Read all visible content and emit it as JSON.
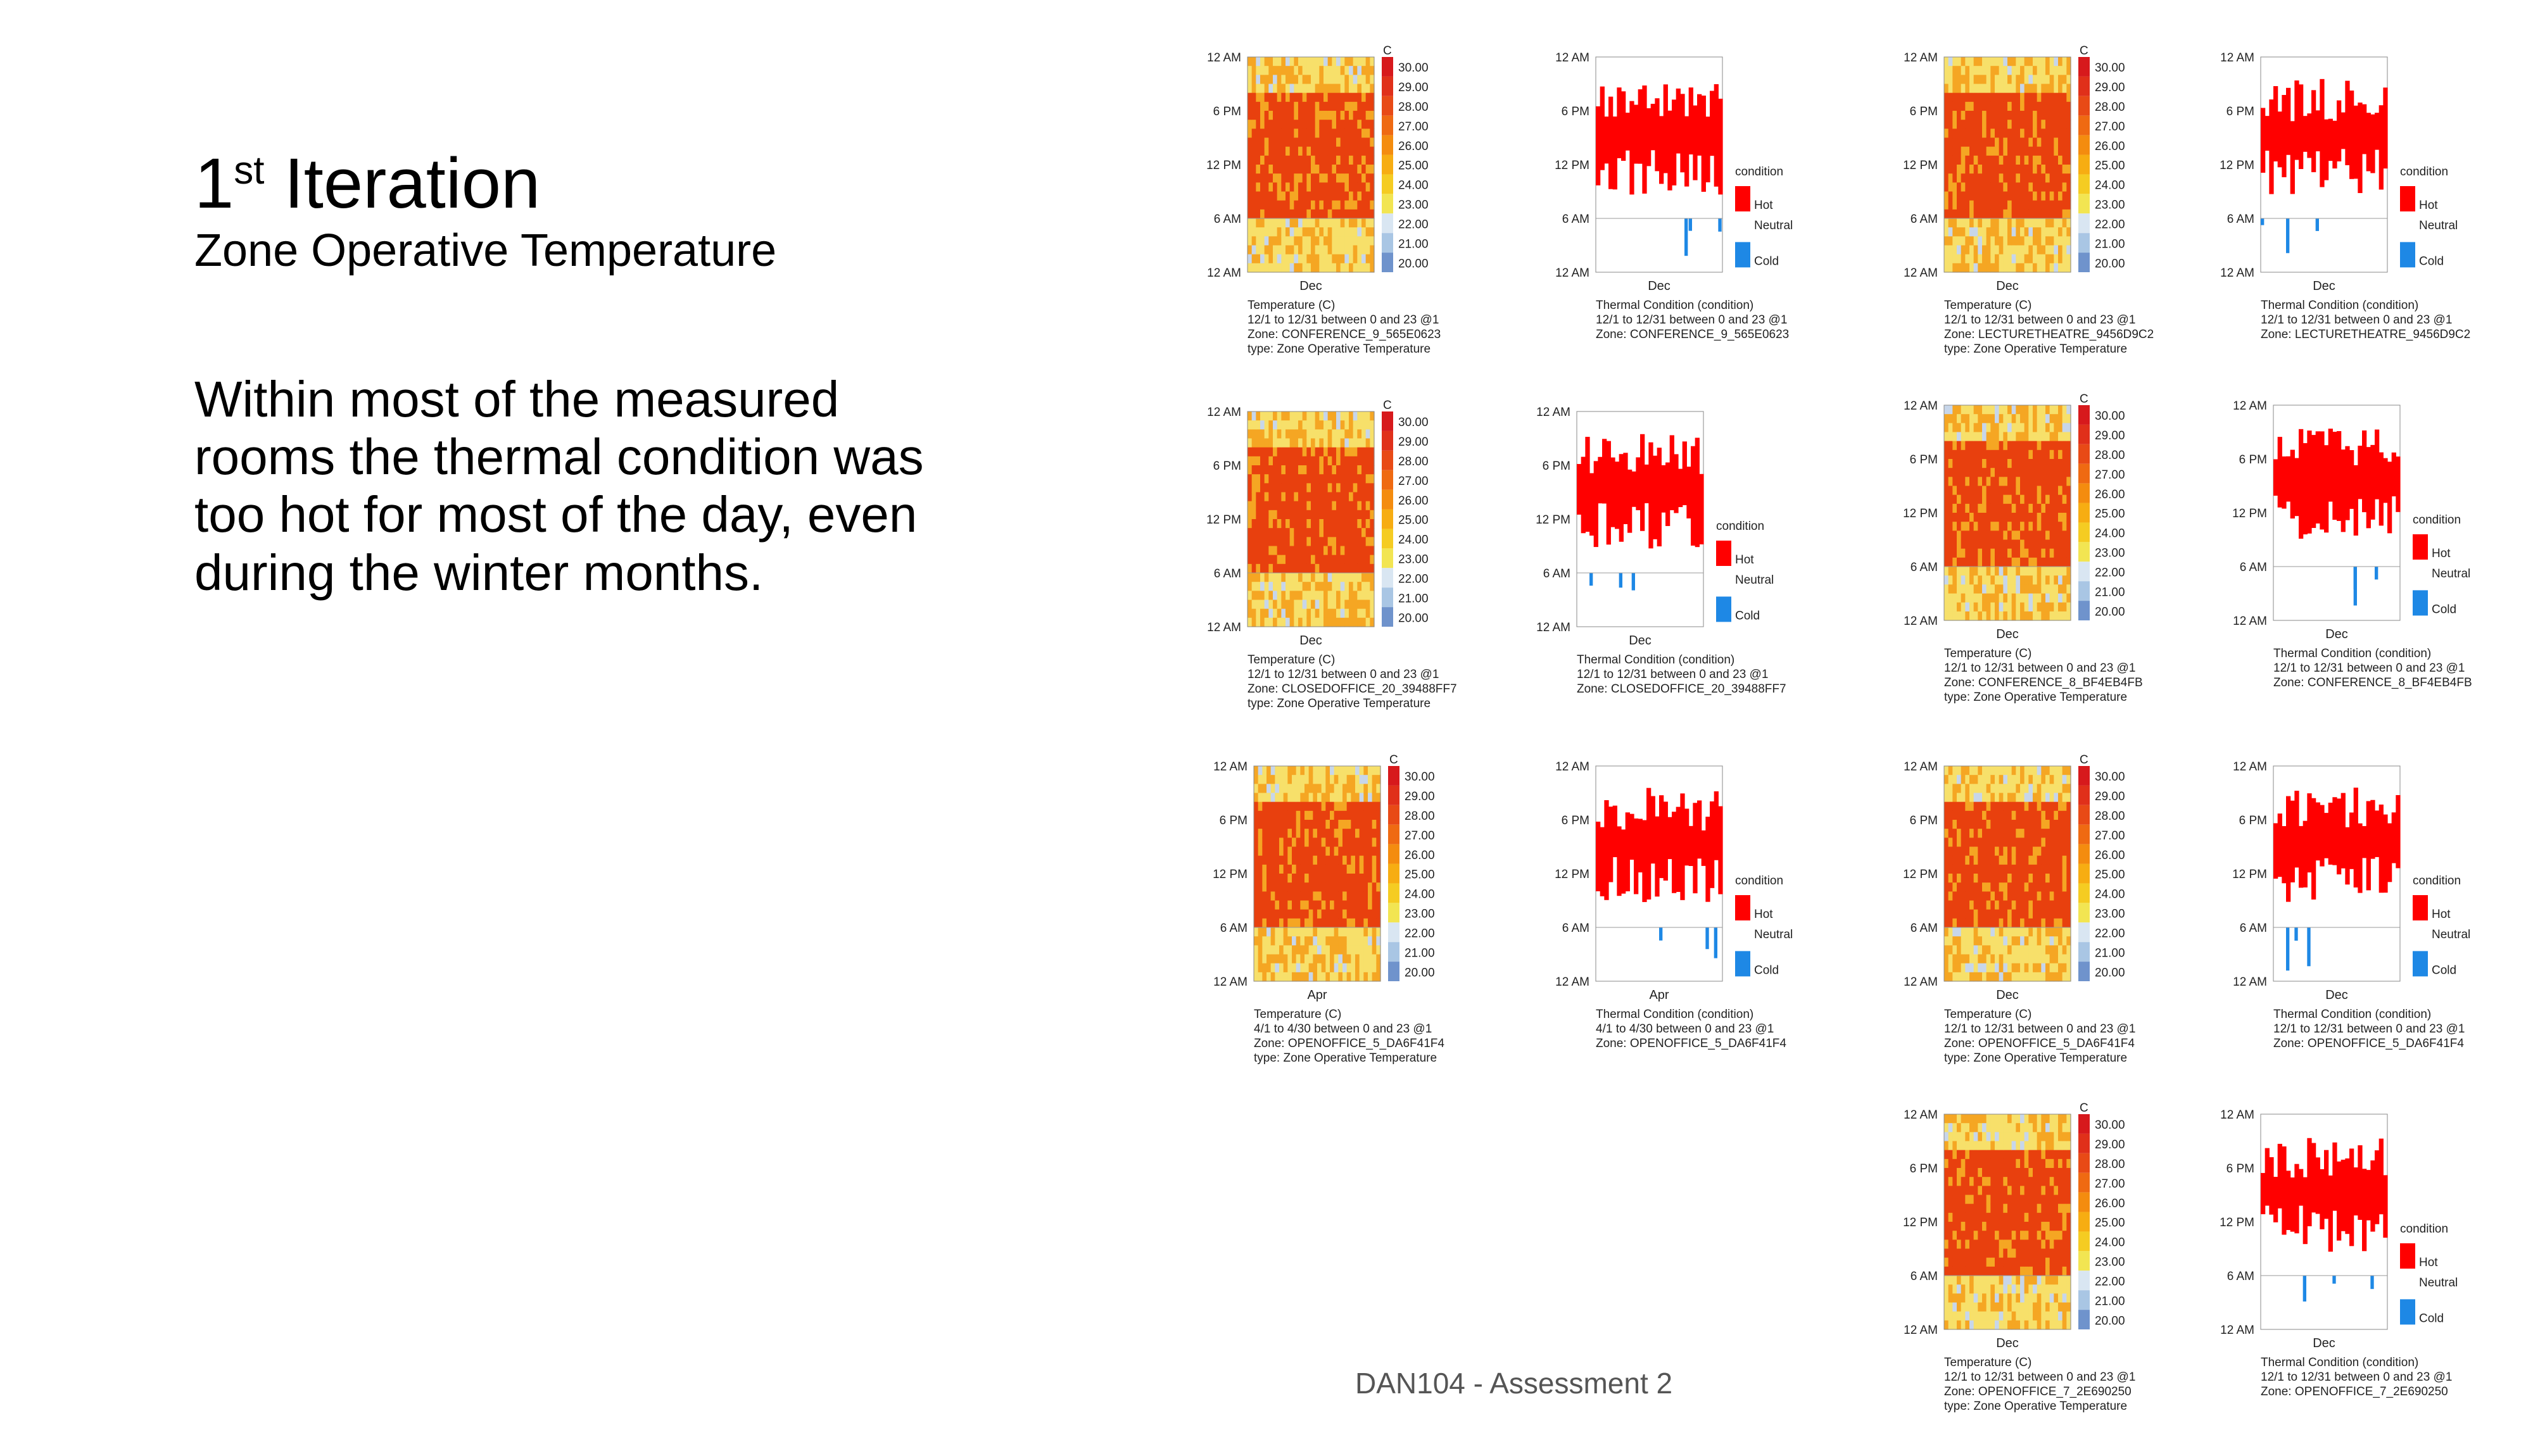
{
  "title": {
    "main": "1",
    "superscript": "st",
    "rest": " Iteration"
  },
  "subtitle": "Zone Operative Temperature",
  "body_text": "Within most of the measured rooms the thermal condition was too hot for most of the day, even during the winter months.",
  "footer": "DAN104 - Assessment 2",
  "common": {
    "hour_ticks": [
      "12 AM",
      "6 PM",
      "12 PM",
      "6 AM",
      "12 AM"
    ],
    "legend_unit": "C",
    "legend_values": [
      "30.00",
      "29.00",
      "28.00",
      "27.00",
      "26.00",
      "25.00",
      "24.00",
      "23.00",
      "22.00",
      "21.00",
      "20.00"
    ],
    "legend_colors": [
      "#d7191c",
      "#e0301a",
      "#e84a16",
      "#ef6a12",
      "#f48c0f",
      "#f7ad12",
      "#f5cc22",
      "#f2e552",
      "#d9e6f2",
      "#a9c6e4",
      "#6f93cc"
    ],
    "condition_legend": {
      "title": "condition",
      "hot": "Hot",
      "neutral": "Neutral",
      "cold": "Cold"
    },
    "colors": {
      "hot": "#ff0000",
      "cold": "#1e88e5",
      "heat_high": "#e8400e",
      "heat_mid": "#f5a623",
      "heat_low": "#f7e06a"
    }
  },
  "chart_data": [
    {
      "type": "heatmap",
      "xlabel": "Dec",
      "caption": [
        "Temperature (C)",
        "12/1 to 12/31 between 0 and 23 @1",
        "Zone: CONFERENCE_9_565E0623",
        "type: Zone Operative Temperature"
      ],
      "value_range": [
        20,
        30
      ]
    },
    {
      "type": "bar",
      "xlabel": "Dec",
      "caption": [
        "Thermal Condition (condition)",
        "12/1 to 12/31 between 0 and 23 @1",
        "Zone: CONFERENCE_9_565E0623"
      ],
      "categories": [
        "Hot",
        "Neutral",
        "Cold"
      ]
    },
    {
      "type": "heatmap",
      "xlabel": "Dec",
      "caption": [
        "Temperature (C)",
        "12/1 to 12/31 between 0 and 23 @1",
        "Zone: LECTURETHEATRE_9456D9C2",
        "type: Zone Operative Temperature"
      ],
      "value_range": [
        20,
        30
      ]
    },
    {
      "type": "bar",
      "xlabel": "Dec",
      "caption": [
        "Thermal Condition (condition)",
        "12/1 to 12/31 between 0 and 23 @1",
        "Zone: LECTURETHEATRE_9456D9C2"
      ],
      "categories": [
        "Hot",
        "Neutral",
        "Cold"
      ]
    },
    {
      "type": "heatmap",
      "xlabel": "Dec",
      "caption": [
        "Temperature (C)",
        "12/1 to 12/31 between 0 and 23 @1",
        "Zone: CLOSEDOFFICE_20_39488FF7",
        "type: Zone Operative Temperature"
      ],
      "value_range": [
        20,
        30
      ]
    },
    {
      "type": "bar",
      "xlabel": "Dec",
      "caption": [
        "Thermal Condition (condition)",
        "12/1 to 12/31 between 0 and 23 @1",
        "Zone: CLOSEDOFFICE_20_39488FF7"
      ],
      "categories": [
        "Hot",
        "Neutral",
        "Cold"
      ]
    },
    {
      "type": "heatmap",
      "xlabel": "Dec",
      "caption": [
        "Temperature (C)",
        "12/1 to 12/31 between 0 and 23 @1",
        "Zone: CONFERENCE_8_BF4EB4FB",
        "type: Zone Operative Temperature"
      ],
      "value_range": [
        20,
        30
      ]
    },
    {
      "type": "bar",
      "xlabel": "Dec",
      "caption": [
        "Thermal Condition (condition)",
        "12/1 to 12/31 between 0 and 23 @1",
        "Zone: CONFERENCE_8_BF4EB4FB"
      ],
      "categories": [
        "Hot",
        "Neutral",
        "Cold"
      ]
    },
    {
      "type": "heatmap",
      "xlabel": "Apr",
      "caption": [
        "Temperature (C)",
        "4/1 to 4/30 between 0 and 23 @1",
        "Zone: OPENOFFICE_5_DA6F41F4",
        "type: Zone Operative Temperature"
      ],
      "value_range": [
        20,
        30
      ]
    },
    {
      "type": "bar",
      "xlabel": "Apr",
      "caption": [
        "Thermal Condition (condition)",
        "4/1 to 4/30 between 0 and 23 @1",
        "Zone: OPENOFFICE_5_DA6F41F4"
      ],
      "categories": [
        "Hot",
        "Neutral",
        "Cold"
      ]
    },
    {
      "type": "heatmap",
      "xlabel": "Dec",
      "caption": [
        "Temperature (C)",
        "12/1 to 12/31 between 0 and 23 @1",
        "Zone: OPENOFFICE_5_DA6F41F4",
        "type: Zone Operative Temperature"
      ],
      "value_range": [
        20,
        30
      ]
    },
    {
      "type": "bar",
      "xlabel": "Dec",
      "caption": [
        "Thermal Condition (condition)",
        "12/1 to 12/31 between 0 and 23 @1",
        "Zone: OPENOFFICE_5_DA6F41F4"
      ],
      "categories": [
        "Hot",
        "Neutral",
        "Cold"
      ]
    },
    {
      "type": "heatmap",
      "xlabel": "Dec",
      "caption": [
        "Temperature (C)",
        "12/1 to 12/31 between 0 and 23 @1",
        "Zone: OPENOFFICE_7_2E690250",
        "type: Zone Operative Temperature"
      ],
      "value_range": [
        20,
        30
      ]
    },
    {
      "type": "bar",
      "xlabel": "Dec",
      "caption": [
        "Thermal Condition (condition)",
        "12/1 to 12/31 between 0 and 23 @1",
        "Zone: OPENOFFICE_7_2E690250"
      ],
      "categories": [
        "Hot",
        "Neutral",
        "Cold"
      ]
    }
  ]
}
